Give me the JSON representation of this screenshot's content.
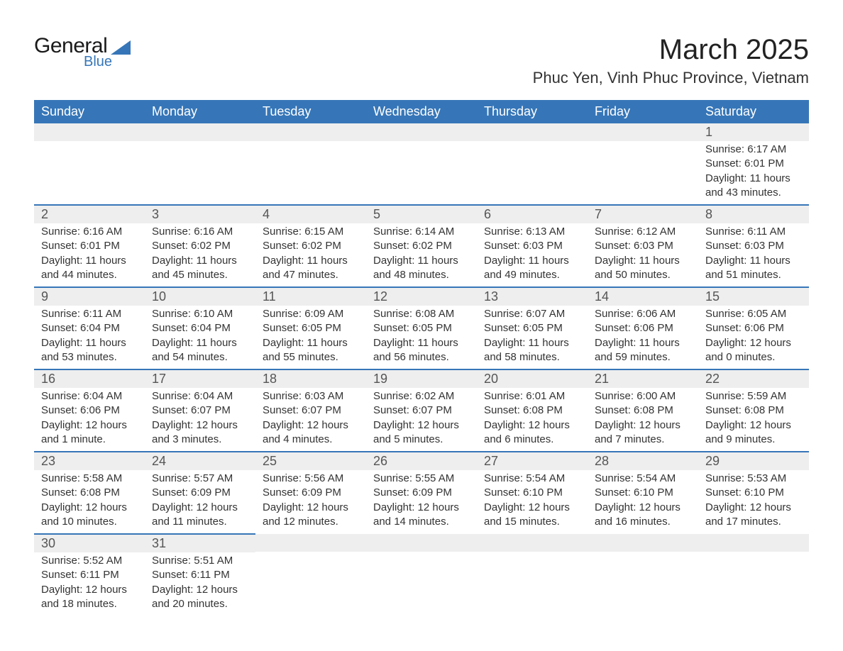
{
  "logo": {
    "line1": "General",
    "line2": "Blue"
  },
  "title": "March 2025",
  "location": "Phuc Yen, Vinh Phuc Province, Vietnam",
  "colors": {
    "header": "#3676b8",
    "band": "#eeeeee",
    "divider": "#3676b8",
    "text": "#333333",
    "background": "#ffffff"
  },
  "typography": {
    "title_fontsize": 40,
    "location_fontsize": 22,
    "weekday_fontsize": 18,
    "daynum_fontsize": 18,
    "details_fontsize": 15,
    "font_family": "Arial"
  },
  "layout": {
    "columns": 7,
    "rows": 6,
    "first_day_column": 6
  },
  "weekdays": [
    "Sunday",
    "Monday",
    "Tuesday",
    "Wednesday",
    "Thursday",
    "Friday",
    "Saturday"
  ],
  "days": [
    {
      "n": 1,
      "sunrise": "6:17 AM",
      "sunset": "6:01 PM",
      "daylight": "11 hours and 43 minutes."
    },
    {
      "n": 2,
      "sunrise": "6:16 AM",
      "sunset": "6:01 PM",
      "daylight": "11 hours and 44 minutes."
    },
    {
      "n": 3,
      "sunrise": "6:16 AM",
      "sunset": "6:02 PM",
      "daylight": "11 hours and 45 minutes."
    },
    {
      "n": 4,
      "sunrise": "6:15 AM",
      "sunset": "6:02 PM",
      "daylight": "11 hours and 47 minutes."
    },
    {
      "n": 5,
      "sunrise": "6:14 AM",
      "sunset": "6:02 PM",
      "daylight": "11 hours and 48 minutes."
    },
    {
      "n": 6,
      "sunrise": "6:13 AM",
      "sunset": "6:03 PM",
      "daylight": "11 hours and 49 minutes."
    },
    {
      "n": 7,
      "sunrise": "6:12 AM",
      "sunset": "6:03 PM",
      "daylight": "11 hours and 50 minutes."
    },
    {
      "n": 8,
      "sunrise": "6:11 AM",
      "sunset": "6:03 PM",
      "daylight": "11 hours and 51 minutes."
    },
    {
      "n": 9,
      "sunrise": "6:11 AM",
      "sunset": "6:04 PM",
      "daylight": "11 hours and 53 minutes."
    },
    {
      "n": 10,
      "sunrise": "6:10 AM",
      "sunset": "6:04 PM",
      "daylight": "11 hours and 54 minutes."
    },
    {
      "n": 11,
      "sunrise": "6:09 AM",
      "sunset": "6:05 PM",
      "daylight": "11 hours and 55 minutes."
    },
    {
      "n": 12,
      "sunrise": "6:08 AM",
      "sunset": "6:05 PM",
      "daylight": "11 hours and 56 minutes."
    },
    {
      "n": 13,
      "sunrise": "6:07 AM",
      "sunset": "6:05 PM",
      "daylight": "11 hours and 58 minutes."
    },
    {
      "n": 14,
      "sunrise": "6:06 AM",
      "sunset": "6:06 PM",
      "daylight": "11 hours and 59 minutes."
    },
    {
      "n": 15,
      "sunrise": "6:05 AM",
      "sunset": "6:06 PM",
      "daylight": "12 hours and 0 minutes."
    },
    {
      "n": 16,
      "sunrise": "6:04 AM",
      "sunset": "6:06 PM",
      "daylight": "12 hours and 1 minute."
    },
    {
      "n": 17,
      "sunrise": "6:04 AM",
      "sunset": "6:07 PM",
      "daylight": "12 hours and 3 minutes."
    },
    {
      "n": 18,
      "sunrise": "6:03 AM",
      "sunset": "6:07 PM",
      "daylight": "12 hours and 4 minutes."
    },
    {
      "n": 19,
      "sunrise": "6:02 AM",
      "sunset": "6:07 PM",
      "daylight": "12 hours and 5 minutes."
    },
    {
      "n": 20,
      "sunrise": "6:01 AM",
      "sunset": "6:08 PM",
      "daylight": "12 hours and 6 minutes."
    },
    {
      "n": 21,
      "sunrise": "6:00 AM",
      "sunset": "6:08 PM",
      "daylight": "12 hours and 7 minutes."
    },
    {
      "n": 22,
      "sunrise": "5:59 AM",
      "sunset": "6:08 PM",
      "daylight": "12 hours and 9 minutes."
    },
    {
      "n": 23,
      "sunrise": "5:58 AM",
      "sunset": "6:08 PM",
      "daylight": "12 hours and 10 minutes."
    },
    {
      "n": 24,
      "sunrise": "5:57 AM",
      "sunset": "6:09 PM",
      "daylight": "12 hours and 11 minutes."
    },
    {
      "n": 25,
      "sunrise": "5:56 AM",
      "sunset": "6:09 PM",
      "daylight": "12 hours and 12 minutes."
    },
    {
      "n": 26,
      "sunrise": "5:55 AM",
      "sunset": "6:09 PM",
      "daylight": "12 hours and 14 minutes."
    },
    {
      "n": 27,
      "sunrise": "5:54 AM",
      "sunset": "6:10 PM",
      "daylight": "12 hours and 15 minutes."
    },
    {
      "n": 28,
      "sunrise": "5:54 AM",
      "sunset": "6:10 PM",
      "daylight": "12 hours and 16 minutes."
    },
    {
      "n": 29,
      "sunrise": "5:53 AM",
      "sunset": "6:10 PM",
      "daylight": "12 hours and 17 minutes."
    },
    {
      "n": 30,
      "sunrise": "5:52 AM",
      "sunset": "6:11 PM",
      "daylight": "12 hours and 18 minutes."
    },
    {
      "n": 31,
      "sunrise": "5:51 AM",
      "sunset": "6:11 PM",
      "daylight": "12 hours and 20 minutes."
    }
  ],
  "labels": {
    "sunrise": "Sunrise:",
    "sunset": "Sunset:",
    "daylight": "Daylight:"
  }
}
